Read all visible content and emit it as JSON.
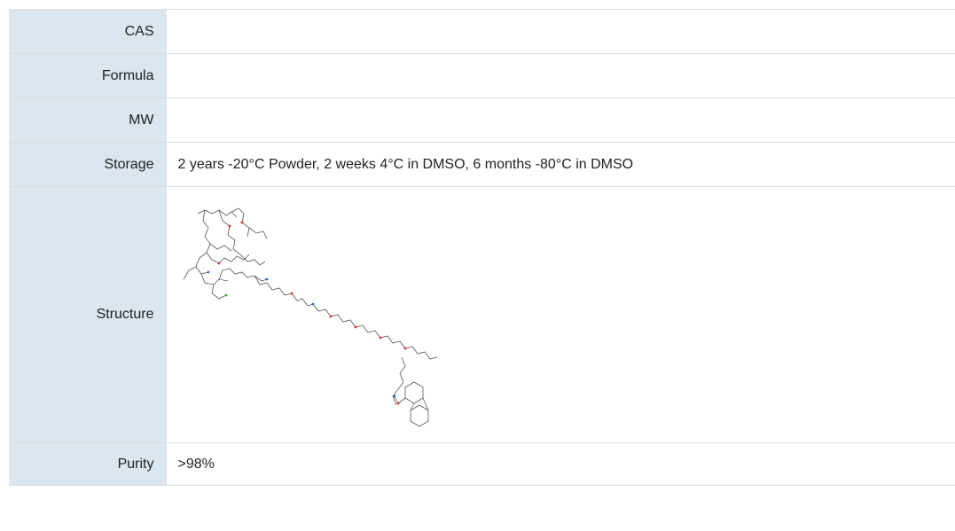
{
  "rows": [
    {
      "label": "CAS",
      "value": ""
    },
    {
      "label": "Formula",
      "value": ""
    },
    {
      "label": "MW",
      "value": ""
    },
    {
      "label": "Storage",
      "value": "2 years -20°C Powder, 2 weeks 4°C in DMSO, 6 months -80°C in DMSO"
    },
    {
      "label": "Structure",
      "value": ""
    },
    {
      "label": "Purity",
      "value": ">98%"
    }
  ],
  "structure_image": {
    "description_icon": "chemical-structure-image"
  }
}
